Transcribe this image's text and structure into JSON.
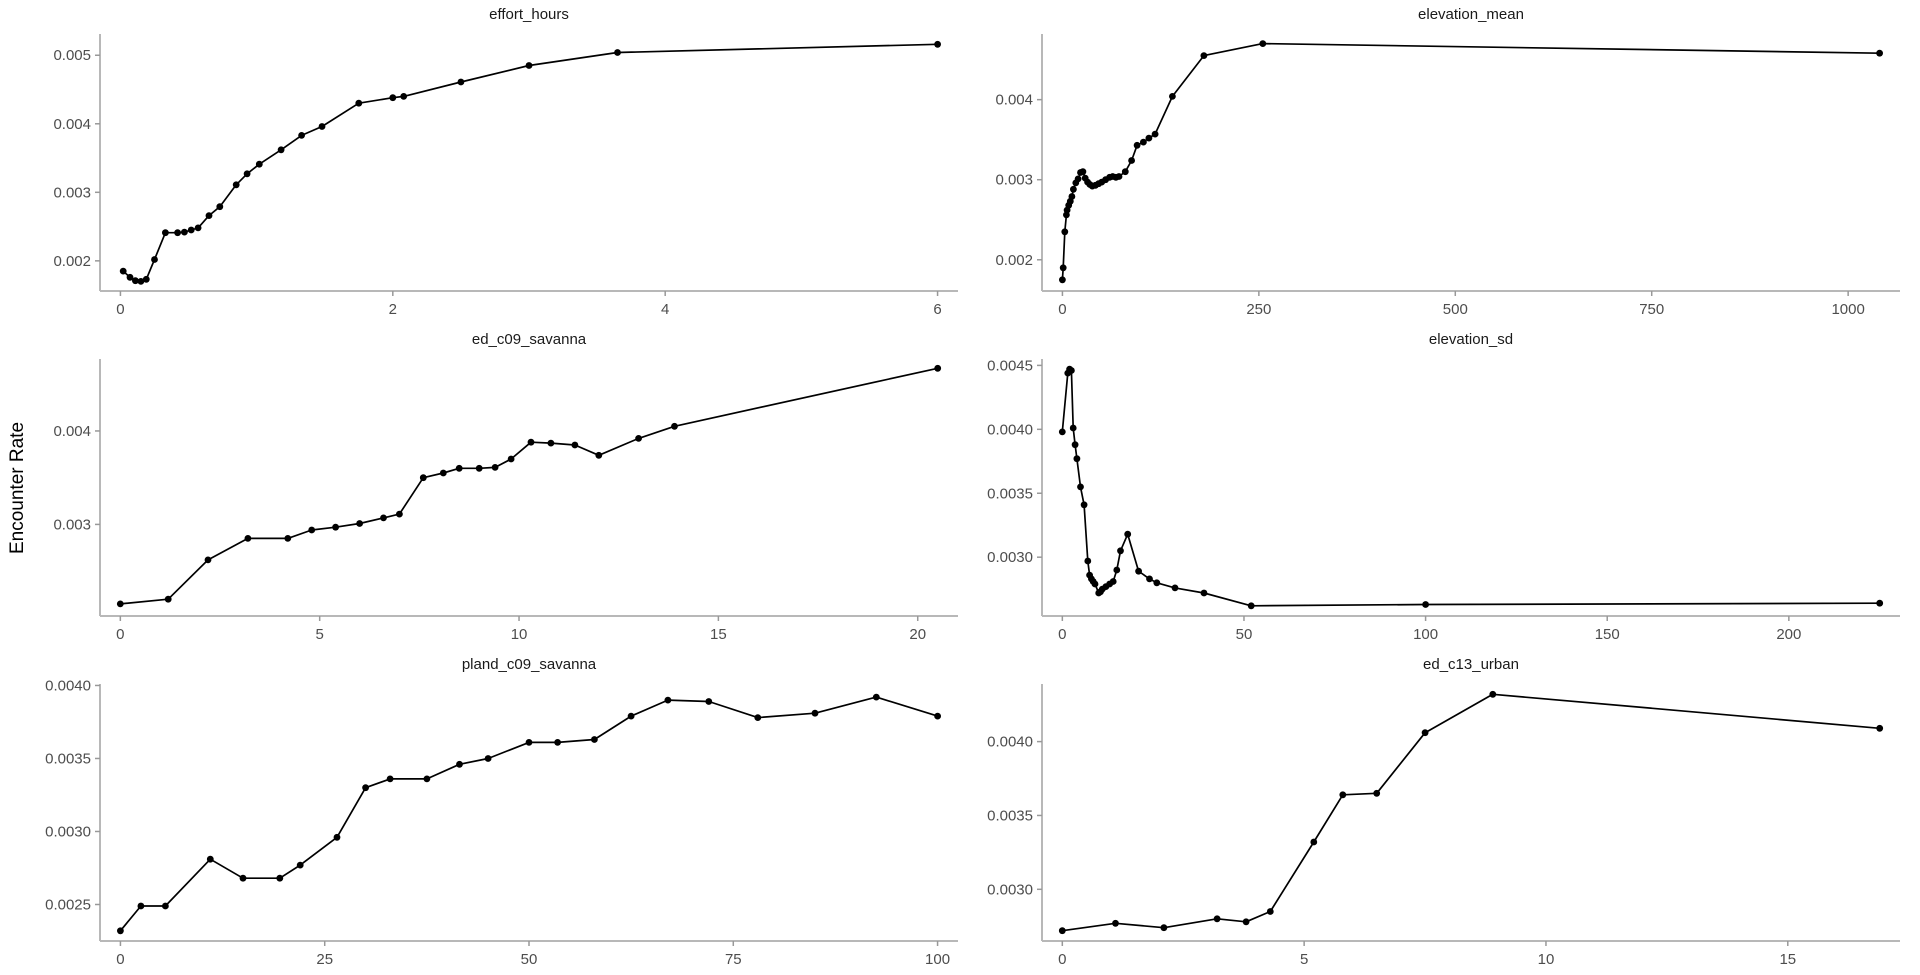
{
  "figure": {
    "ylab": "Encounter Rate",
    "background_color": "#ffffff",
    "series_color": "#000000",
    "axis_color": "#b8b8b8",
    "tick_color": "#999999",
    "tick_label_color": "#4d4d4d",
    "title_color": "#1a1a1a"
  },
  "chart_data": [
    {
      "type": "line",
      "title": "effort_hours",
      "xlabel": "",
      "ylabel": "Encounter Rate",
      "legend": "none",
      "grid": "off",
      "xticks": [
        0,
        2,
        4,
        6
      ],
      "xlim": [
        -0.15,
        6.15
      ],
      "yticks": [
        0.002,
        0.003,
        0.004,
        0.005
      ],
      "ytick_labels": [
        "0.002",
        "0.003",
        "0.004",
        "0.005"
      ],
      "ylim": [
        0.00156,
        0.00531
      ],
      "points": [
        [
          0.02,
          0.00185
        ],
        [
          0.07,
          0.00176
        ],
        [
          0.11,
          0.00171
        ],
        [
          0.15,
          0.0017
        ],
        [
          0.19,
          0.00173
        ],
        [
          0.25,
          0.00202
        ],
        [
          0.33,
          0.00241
        ],
        [
          0.42,
          0.00241
        ],
        [
          0.47,
          0.00242
        ],
        [
          0.52,
          0.00245
        ],
        [
          0.57,
          0.00248
        ],
        [
          0.65,
          0.00266
        ],
        [
          0.73,
          0.00279
        ],
        [
          0.85,
          0.00311
        ],
        [
          0.93,
          0.00327
        ],
        [
          1.02,
          0.00341
        ],
        [
          1.18,
          0.00362
        ],
        [
          1.33,
          0.00383
        ],
        [
          1.48,
          0.00396
        ],
        [
          1.75,
          0.0043
        ],
        [
          2.0,
          0.00438
        ],
        [
          2.08,
          0.0044
        ],
        [
          2.5,
          0.00461
        ],
        [
          3.0,
          0.00485
        ],
        [
          3.65,
          0.00504
        ],
        [
          6.0,
          0.00516
        ]
      ]
    },
    {
      "type": "line",
      "title": "elevation_mean",
      "xlabel": "",
      "ylabel": "Encounter Rate",
      "legend": "none",
      "grid": "off",
      "xticks": [
        0,
        250,
        500,
        750,
        1000
      ],
      "xlim": [
        -26,
        1066
      ],
      "yticks": [
        0.002,
        0.003,
        0.004
      ],
      "ytick_labels": [
        "0.002",
        "0.003",
        "0.004"
      ],
      "ylim": [
        0.00161,
        0.00482
      ],
      "points": [
        [
          0,
          0.00175
        ],
        [
          1,
          0.0019
        ],
        [
          3,
          0.00235
        ],
        [
          5,
          0.00256
        ],
        [
          6,
          0.00262
        ],
        [
          8,
          0.00268
        ],
        [
          10,
          0.00273
        ],
        [
          12,
          0.00279
        ],
        [
          14,
          0.00288
        ],
        [
          17,
          0.00296
        ],
        [
          20,
          0.00301
        ],
        [
          23,
          0.00309
        ],
        [
          26,
          0.0031
        ],
        [
          29,
          0.00302
        ],
        [
          32,
          0.00297
        ],
        [
          35,
          0.00294
        ],
        [
          38,
          0.00292
        ],
        [
          42,
          0.00293
        ],
        [
          46,
          0.00295
        ],
        [
          50,
          0.00297
        ],
        [
          55,
          0.003
        ],
        [
          60,
          0.00303
        ],
        [
          64,
          0.00304
        ],
        [
          68,
          0.00303
        ],
        [
          72,
          0.00304
        ],
        [
          80,
          0.0031
        ],
        [
          88,
          0.00324
        ],
        [
          95,
          0.00343
        ],
        [
          103,
          0.00347
        ],
        [
          110,
          0.00352
        ],
        [
          118,
          0.00357
        ],
        [
          140,
          0.00404
        ],
        [
          180,
          0.00455
        ],
        [
          255,
          0.0047
        ],
        [
          1040,
          0.00458
        ]
      ]
    },
    {
      "type": "line",
      "title": "ed_c09_savanna",
      "xlabel": "",
      "ylabel": "Encounter Rate",
      "legend": "none",
      "grid": "off",
      "xticks": [
        0,
        5,
        10,
        15,
        20
      ],
      "xlim": [
        -0.51,
        21.01
      ],
      "yticks": [
        0.003,
        0.004
      ],
      "ytick_labels": [
        "0.003",
        "0.004"
      ],
      "ylim": [
        0.00202,
        0.00477
      ],
      "points": [
        [
          0,
          0.00215
        ],
        [
          1.2,
          0.0022
        ],
        [
          2.2,
          0.00262
        ],
        [
          3.2,
          0.00285
        ],
        [
          4.2,
          0.00285
        ],
        [
          4.8,
          0.00294
        ],
        [
          5.4,
          0.00297
        ],
        [
          6.0,
          0.00301
        ],
        [
          6.6,
          0.00307
        ],
        [
          7.0,
          0.00311
        ],
        [
          7.6,
          0.0035
        ],
        [
          8.1,
          0.00355
        ],
        [
          8.5,
          0.0036
        ],
        [
          9.0,
          0.0036
        ],
        [
          9.4,
          0.00361
        ],
        [
          9.8,
          0.0037
        ],
        [
          10.3,
          0.00388
        ],
        [
          10.8,
          0.00387
        ],
        [
          11.4,
          0.00385
        ],
        [
          12.0,
          0.00374
        ],
        [
          13.0,
          0.00392
        ],
        [
          13.9,
          0.00405
        ],
        [
          20.5,
          0.00467
        ]
      ]
    },
    {
      "type": "line",
      "title": "elevation_sd",
      "xlabel": "",
      "ylabel": "Encounter Rate",
      "legend": "none",
      "grid": "off",
      "xticks": [
        0,
        50,
        100,
        150,
        200
      ],
      "xlim": [
        -5.6,
        230.6
      ],
      "yticks": [
        0.003,
        0.0035,
        0.004,
        0.0045
      ],
      "ytick_labels": [
        "0.0030",
        "0.0035",
        "0.0040",
        "0.0045"
      ],
      "ylim": [
        0.00254,
        0.00455
      ],
      "points": [
        [
          0,
          0.00398
        ],
        [
          1.5,
          0.00444
        ],
        [
          2,
          0.00447
        ],
        [
          2.5,
          0.00446
        ],
        [
          3,
          0.00401
        ],
        [
          3.5,
          0.00388
        ],
        [
          4,
          0.00377
        ],
        [
          5,
          0.00355
        ],
        [
          6,
          0.00341
        ],
        [
          7,
          0.00297
        ],
        [
          7.5,
          0.00286
        ],
        [
          8,
          0.00283
        ],
        [
          8.5,
          0.00281
        ],
        [
          9,
          0.00279
        ],
        [
          10,
          0.00272
        ],
        [
          10.5,
          0.00273
        ],
        [
          11,
          0.00275
        ],
        [
          12,
          0.00277
        ],
        [
          13,
          0.00279
        ],
        [
          14,
          0.00281
        ],
        [
          15,
          0.0029
        ],
        [
          16,
          0.00305
        ],
        [
          18,
          0.00318
        ],
        [
          21,
          0.00289
        ],
        [
          24,
          0.00283
        ],
        [
          26,
          0.0028
        ],
        [
          31,
          0.00276
        ],
        [
          39,
          0.00272
        ],
        [
          52,
          0.00262
        ],
        [
          100,
          0.00263
        ],
        [
          225,
          0.00264
        ]
      ]
    },
    {
      "type": "line",
      "title": "pland_c09_savanna",
      "xlabel": "",
      "ylabel": "Encounter Rate",
      "legend": "none",
      "grid": "off",
      "xticks": [
        0,
        25,
        50,
        75,
        100
      ],
      "xlim": [
        -2.5,
        102.5
      ],
      "yticks": [
        0.0025,
        0.003,
        0.0035,
        0.004
      ],
      "ytick_labels": [
        "0.0025",
        "0.0030",
        "0.0035",
        "0.0040"
      ],
      "ylim": [
        0.00225,
        0.00401
      ],
      "points": [
        [
          0,
          0.00232
        ],
        [
          2.5,
          0.00249
        ],
        [
          5.5,
          0.00249
        ],
        [
          11,
          0.00281
        ],
        [
          15,
          0.00268
        ],
        [
          19.5,
          0.00268
        ],
        [
          22,
          0.00277
        ],
        [
          26.5,
          0.00296
        ],
        [
          30,
          0.0033
        ],
        [
          33,
          0.00336
        ],
        [
          37.5,
          0.00336
        ],
        [
          41.5,
          0.00346
        ],
        [
          45,
          0.0035
        ],
        [
          50,
          0.00361
        ],
        [
          53.5,
          0.00361
        ],
        [
          58,
          0.00363
        ],
        [
          62.5,
          0.00379
        ],
        [
          67,
          0.0039
        ],
        [
          72,
          0.00389
        ],
        [
          78,
          0.00378
        ],
        [
          85,
          0.00381
        ],
        [
          92.5,
          0.00392
        ],
        [
          100,
          0.00379
        ]
      ]
    },
    {
      "type": "line",
      "title": "ed_c13_urban",
      "xlabel": "",
      "ylabel": "Encounter Rate",
      "legend": "none",
      "grid": "off",
      "xticks": [
        0,
        5,
        10,
        15
      ],
      "xlim": [
        -0.42,
        17.32
      ],
      "yticks": [
        0.003,
        0.0035,
        0.004
      ],
      "ytick_labels": [
        "0.0030",
        "0.0035",
        "0.0040"
      ],
      "ylim": [
        0.00265,
        0.00439
      ],
      "points": [
        [
          0,
          0.00272
        ],
        [
          1.1,
          0.00277
        ],
        [
          2.1,
          0.00274
        ],
        [
          3.2,
          0.0028
        ],
        [
          3.8,
          0.00278
        ],
        [
          4.3,
          0.00285
        ],
        [
          5.2,
          0.00332
        ],
        [
          5.8,
          0.00364
        ],
        [
          6.5,
          0.00365
        ],
        [
          7.5,
          0.00406
        ],
        [
          8.9,
          0.00432
        ],
        [
          16.9,
          0.00409
        ]
      ]
    }
  ]
}
